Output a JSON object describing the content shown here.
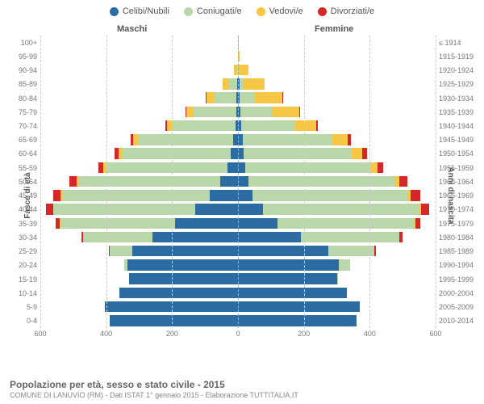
{
  "legend": [
    {
      "label": "Celibi/Nubili",
      "color": "#2b6ca3"
    },
    {
      "label": "Coniugati/e",
      "color": "#b9d7a8"
    },
    {
      "label": "Vedovi/e",
      "color": "#f6c744"
    },
    {
      "label": "Divorziati/e",
      "color": "#d62728"
    }
  ],
  "headers": {
    "male": "Maschi",
    "female": "Femmine"
  },
  "axis_left_label": "Fasce di età",
  "axis_right_label": "Anni di nascita",
  "colors": {
    "single": "#2b6ca3",
    "married": "#b9d7a8",
    "widowed": "#f6c744",
    "divorced": "#d62728",
    "grid": "#cccccc",
    "center": "#aaaaaa",
    "bg": "#ffffff"
  },
  "xmax": 600,
  "xticks": [
    600,
    400,
    200,
    0,
    200,
    400,
    600
  ],
  "rows": [
    {
      "age": "100+",
      "year": "≤ 1914",
      "m": {
        "s": 0,
        "c": 0,
        "w": 0,
        "d": 0
      },
      "f": {
        "s": 0,
        "c": 0,
        "w": 1,
        "d": 0
      }
    },
    {
      "age": "95-99",
      "year": "1915-1919",
      "m": {
        "s": 0,
        "c": 0,
        "w": 1,
        "d": 0
      },
      "f": {
        "s": 0,
        "c": 0,
        "w": 6,
        "d": 0
      }
    },
    {
      "age": "90-94",
      "year": "1920-1924",
      "m": {
        "s": 0,
        "c": 4,
        "w": 8,
        "d": 0
      },
      "f": {
        "s": 1,
        "c": 2,
        "w": 30,
        "d": 0
      }
    },
    {
      "age": "85-89",
      "year": "1925-1929",
      "m": {
        "s": 2,
        "c": 28,
        "w": 16,
        "d": 0
      },
      "f": {
        "s": 4,
        "c": 14,
        "w": 62,
        "d": 0
      }
    },
    {
      "age": "80-84",
      "year": "1930-1934",
      "m": {
        "s": 4,
        "c": 70,
        "w": 22,
        "d": 1
      },
      "f": {
        "s": 6,
        "c": 42,
        "w": 86,
        "d": 1
      }
    },
    {
      "age": "75-79",
      "year": "1935-1939",
      "m": {
        "s": 5,
        "c": 130,
        "w": 22,
        "d": 2
      },
      "f": {
        "s": 8,
        "c": 96,
        "w": 82,
        "d": 3
      }
    },
    {
      "age": "70-74",
      "year": "1940-1944",
      "m": {
        "s": 8,
        "c": 190,
        "w": 18,
        "d": 4
      },
      "f": {
        "s": 10,
        "c": 165,
        "w": 62,
        "d": 5
      }
    },
    {
      "age": "65-69",
      "year": "1945-1949",
      "m": {
        "s": 14,
        "c": 290,
        "w": 14,
        "d": 8
      },
      "f": {
        "s": 14,
        "c": 270,
        "w": 48,
        "d": 10
      }
    },
    {
      "age": "60-64",
      "year": "1950-1954",
      "m": {
        "s": 22,
        "c": 330,
        "w": 10,
        "d": 12
      },
      "f": {
        "s": 16,
        "c": 330,
        "w": 32,
        "d": 14
      }
    },
    {
      "age": "55-59",
      "year": "1955-1959",
      "m": {
        "s": 32,
        "c": 370,
        "w": 6,
        "d": 16
      },
      "f": {
        "s": 22,
        "c": 380,
        "w": 22,
        "d": 18
      }
    },
    {
      "age": "50-54",
      "year": "1960-1964",
      "m": {
        "s": 55,
        "c": 430,
        "w": 4,
        "d": 22
      },
      "f": {
        "s": 32,
        "c": 445,
        "w": 14,
        "d": 24
      }
    },
    {
      "age": "45-49",
      "year": "1965-1969",
      "m": {
        "s": 85,
        "c": 450,
        "w": 3,
        "d": 24
      },
      "f": {
        "s": 45,
        "c": 470,
        "w": 10,
        "d": 28
      }
    },
    {
      "age": "40-44",
      "year": "1970-1974",
      "m": {
        "s": 130,
        "c": 430,
        "w": 2,
        "d": 20
      },
      "f": {
        "s": 75,
        "c": 475,
        "w": 6,
        "d": 24
      }
    },
    {
      "age": "35-39",
      "year": "1975-1979",
      "m": {
        "s": 190,
        "c": 350,
        "w": 1,
        "d": 12
      },
      "f": {
        "s": 120,
        "c": 415,
        "w": 3,
        "d": 16
      }
    },
    {
      "age": "30-34",
      "year": "1980-1984",
      "m": {
        "s": 260,
        "c": 210,
        "w": 0,
        "d": 6
      },
      "f": {
        "s": 190,
        "c": 300,
        "w": 1,
        "d": 8
      }
    },
    {
      "age": "25-29",
      "year": "1985-1989",
      "m": {
        "s": 320,
        "c": 70,
        "w": 0,
        "d": 2
      },
      "f": {
        "s": 275,
        "c": 140,
        "w": 0,
        "d": 3
      }
    },
    {
      "age": "20-24",
      "year": "1990-1994",
      "m": {
        "s": 335,
        "c": 10,
        "w": 0,
        "d": 0
      },
      "f": {
        "s": 305,
        "c": 35,
        "w": 0,
        "d": 0
      }
    },
    {
      "age": "15-19",
      "year": "1995-1999",
      "m": {
        "s": 330,
        "c": 0,
        "w": 0,
        "d": 0
      },
      "f": {
        "s": 300,
        "c": 1,
        "w": 0,
        "d": 0
      }
    },
    {
      "age": "10-14",
      "year": "2000-2004",
      "m": {
        "s": 360,
        "c": 0,
        "w": 0,
        "d": 0
      },
      "f": {
        "s": 330,
        "c": 0,
        "w": 0,
        "d": 0
      }
    },
    {
      "age": "5-9",
      "year": "2005-2009",
      "m": {
        "s": 405,
        "c": 0,
        "w": 0,
        "d": 0
      },
      "f": {
        "s": 370,
        "c": 0,
        "w": 0,
        "d": 0
      }
    },
    {
      "age": "0-4",
      "year": "2010-2014",
      "m": {
        "s": 390,
        "c": 0,
        "w": 0,
        "d": 0
      },
      "f": {
        "s": 360,
        "c": 0,
        "w": 0,
        "d": 0
      }
    }
  ],
  "footer": {
    "title": "Popolazione per età, sesso e stato civile - 2015",
    "sub": "COMUNE DI LANUVIO (RM) - Dati ISTAT 1° gennaio 2015 - Elaborazione TUTTITALIA.IT"
  }
}
